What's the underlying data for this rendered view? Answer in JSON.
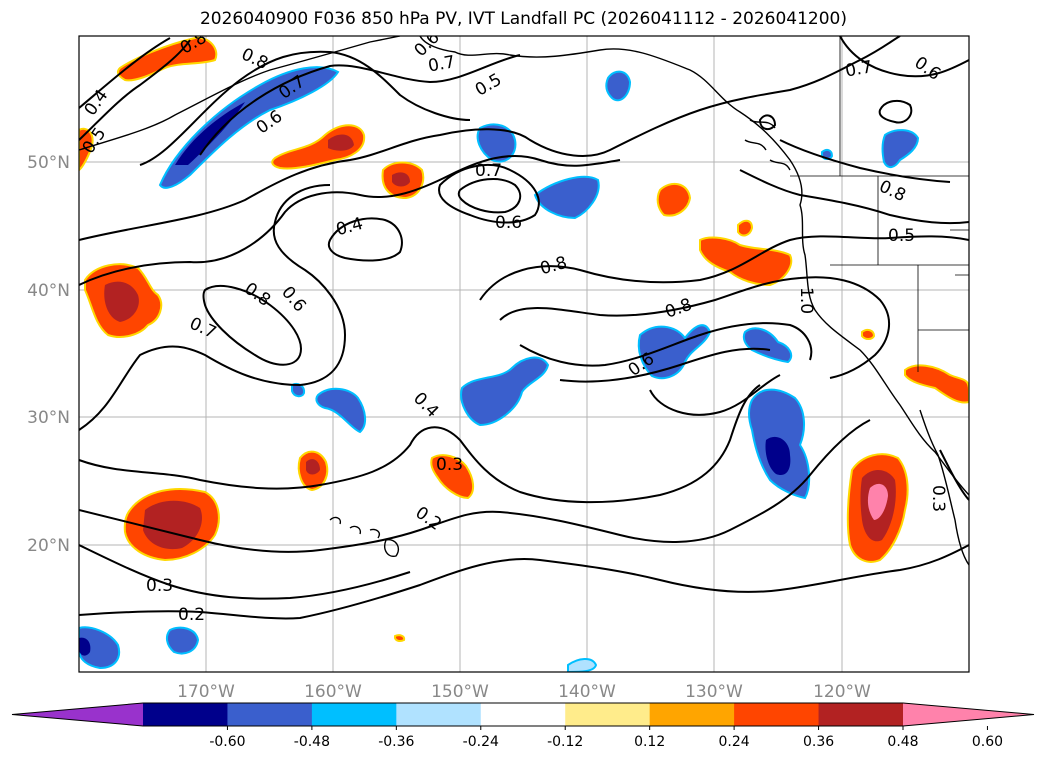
{
  "title": "2026040900 F036 850 hPa PV, IVT Landfall PC (2026041112 - 2026041200)",
  "longitude_labels": [
    "170°W",
    "160°W",
    "150°W",
    "140°W",
    "130°W",
    "120°W"
  ],
  "latitude_labels": [
    "50°N",
    "40°N",
    "30°N",
    "20°N"
  ],
  "colorbar": {
    "colors": [
      "#9932cc",
      "#00008b",
      "#3a5fcd",
      "#00bfff",
      "#b0e2ff",
      "#ffffff",
      "#ffec8b",
      "#ffa500",
      "#ff4500",
      "#b22222",
      "#ff82ab"
    ],
    "ticks": [
      "-0.60",
      "-0.48",
      "-0.36",
      "-0.24",
      "-0.12",
      "0.12",
      "0.24",
      "0.36",
      "0.48",
      "0.60"
    ]
  },
  "contour_labels": [
    "0.8",
    "0.8",
    "0.7",
    "0.6",
    "0.4",
    "0.5",
    "0.7",
    "0.6",
    "0.5",
    "0.8",
    "0.5",
    "0.7",
    "0.6",
    "0.4",
    "0.7",
    "0.8",
    "0.8",
    "0.6",
    "0.7",
    "0.6",
    "0.8",
    "1.0",
    "0.4",
    "0.3",
    "0.2",
    "0.3",
    "0.2",
    "0.3"
  ]
}
